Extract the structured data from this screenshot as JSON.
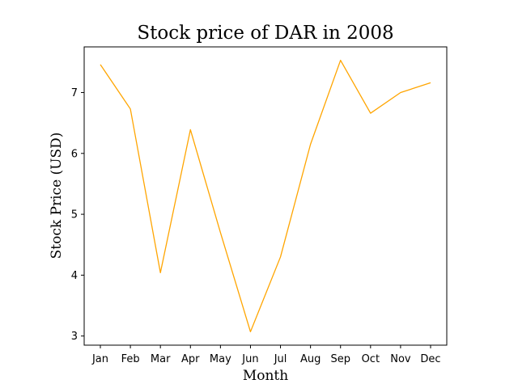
{
  "chart_data": {
    "type": "line",
    "title": "Stock price of DAR in 2008",
    "xlabel": "Month",
    "ylabel": "Stock Price (USD)",
    "categories": [
      "Jan",
      "Feb",
      "Mar",
      "Apr",
      "May",
      "Jun",
      "Jul",
      "Aug",
      "Sep",
      "Oct",
      "Nov",
      "Dec"
    ],
    "series": [
      {
        "values": [
          7.46,
          6.73,
          4.04,
          6.39,
          4.7,
          3.07,
          4.3,
          6.15,
          7.53,
          6.66,
          7.0,
          7.16
        ],
        "color": "#ffa500"
      }
    ],
    "yticks": [
      3,
      4,
      5,
      6,
      7
    ],
    "ylim": [
      2.85,
      7.75
    ],
    "grid": false,
    "legend": "none"
  }
}
